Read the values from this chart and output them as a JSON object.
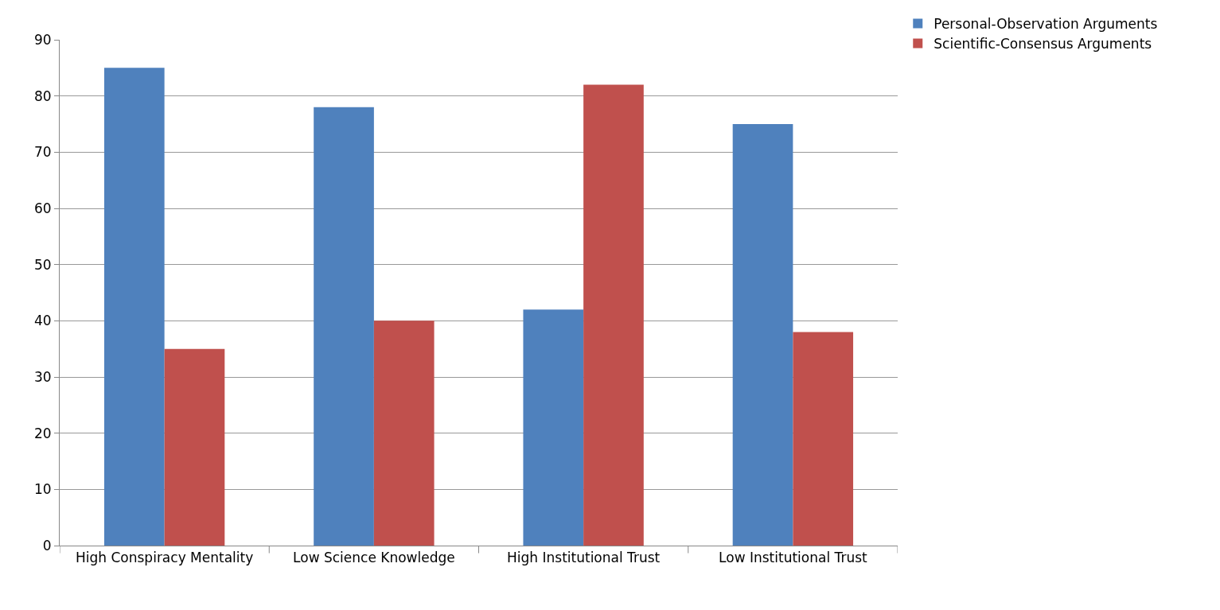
{
  "chart_data": {
    "type": "bar",
    "categories": [
      "High Conspiracy Mentality",
      "Low Science Knowledge",
      "High Institutional Trust",
      "Low Institutional Trust"
    ],
    "series": [
      {
        "name": "Personal-Observation Arguments",
        "color": "#4f81bd",
        "values": [
          85,
          78,
          42,
          75
        ]
      },
      {
        "name": "Scientific-Consensus Arguments",
        "color": "#c0504d",
        "values": [
          35,
          40,
          82,
          38
        ]
      }
    ],
    "ylim": [
      0,
      90
    ],
    "yticks": [
      0,
      10,
      20,
      30,
      40,
      50,
      60,
      70,
      80,
      90
    ],
    "grid": "y",
    "legend": "top right"
  }
}
